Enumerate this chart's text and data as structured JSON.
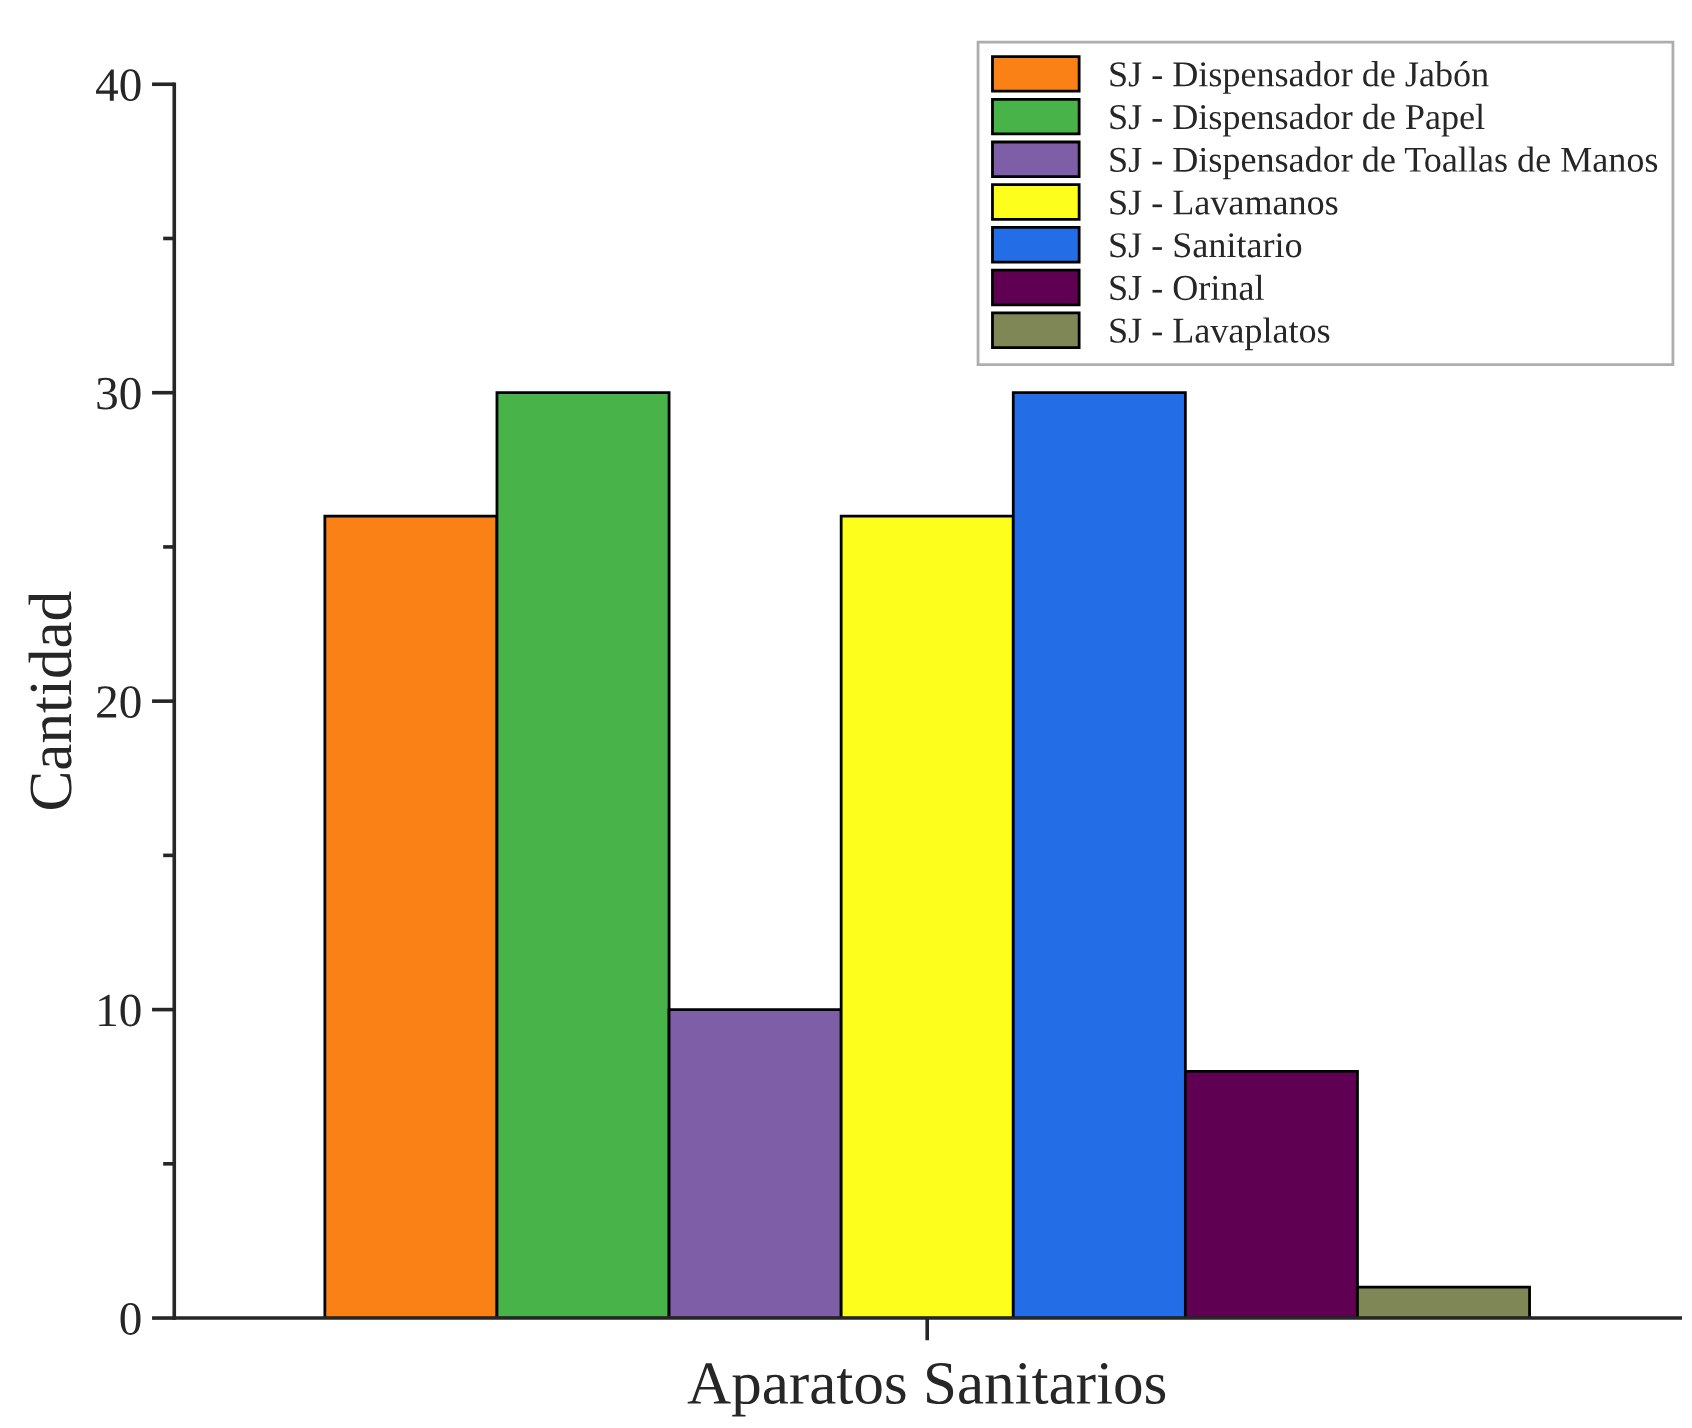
{
  "chart_data": {
    "type": "bar",
    "xlabel": "Aparatos Sanitarios",
    "ylabel": "Cantidad",
    "categories": [
      null
    ],
    "series": [
      {
        "name": "SJ - Dispensador de Jabón",
        "color": "#f98116",
        "values": [
          26
        ]
      },
      {
        "name": "SJ - Dispensador de Papel",
        "color": "#47b348",
        "values": [
          30
        ]
      },
      {
        "name": "SJ - Dispensador de Toallas de Manos",
        "color": "#7f5ea8",
        "values": [
          10
        ]
      },
      {
        "name": "SJ - Lavamanos",
        "color": "#fefe1c",
        "values": [
          26
        ]
      },
      {
        "name": "SJ - Sanitario",
        "color": "#236ee6",
        "values": [
          30
        ]
      },
      {
        "name": "SJ - Orinal",
        "color": "#5f0053",
        "values": [
          8
        ]
      },
      {
        "name": "SJ - Lavaplatos",
        "color": "#7f8756",
        "values": [
          1
        ]
      }
    ],
    "ylim": [
      0,
      40
    ],
    "yticks": [
      0,
      {
        "value": 5,
        "label": null
      },
      10,
      {
        "value": 15,
        "label": null
      },
      20,
      {
        "value": 25,
        "label": null
      },
      30,
      {
        "value": 35,
        "label": null
      },
      40
    ],
    "grid": false,
    "legend": "top right"
  }
}
